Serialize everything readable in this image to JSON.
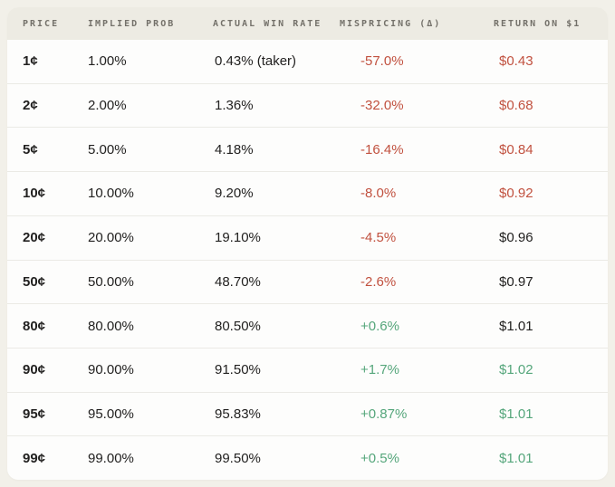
{
  "colors": {
    "page_bg": "#f2f0e9",
    "card_bg": "#fdfdfc",
    "header_bg": "#edebe3",
    "divider": "#ebeae5",
    "header_text": "#74716a",
    "text": "#222120",
    "negative": "#c1513f",
    "positive": "#55a67b"
  },
  "chart_data": {
    "type": "table",
    "columns": [
      "PRICE",
      "IMPLIED PROB",
      "ACTUAL WIN RATE",
      "MISPRICING (Δ)",
      "RETURN ON $1"
    ],
    "rows": [
      {
        "price": "1¢",
        "implied_prob": "1.00%",
        "actual_win_rate": "0.43% (taker)",
        "mispricing": "-57.0%",
        "mispricing_tone": "negative",
        "return_on_1": "$0.43",
        "return_tone": "negative"
      },
      {
        "price": "2¢",
        "implied_prob": "2.00%",
        "actual_win_rate": "1.36%",
        "mispricing": "-32.0%",
        "mispricing_tone": "negative",
        "return_on_1": "$0.68",
        "return_tone": "negative"
      },
      {
        "price": "5¢",
        "implied_prob": "5.00%",
        "actual_win_rate": "4.18%",
        "mispricing": "-16.4%",
        "mispricing_tone": "negative",
        "return_on_1": "$0.84",
        "return_tone": "negative"
      },
      {
        "price": "10¢",
        "implied_prob": "10.00%",
        "actual_win_rate": "9.20%",
        "mispricing": "-8.0%",
        "mispricing_tone": "negative",
        "return_on_1": "$0.92",
        "return_tone": "negative"
      },
      {
        "price": "20¢",
        "implied_prob": "20.00%",
        "actual_win_rate": "19.10%",
        "mispricing": "-4.5%",
        "mispricing_tone": "negative",
        "return_on_1": "$0.96",
        "return_tone": "neutral"
      },
      {
        "price": "50¢",
        "implied_prob": "50.00%",
        "actual_win_rate": "48.70%",
        "mispricing": "-2.6%",
        "mispricing_tone": "negative",
        "return_on_1": "$0.97",
        "return_tone": "neutral"
      },
      {
        "price": "80¢",
        "implied_prob": "80.00%",
        "actual_win_rate": "80.50%",
        "mispricing": "+0.6%",
        "mispricing_tone": "positive",
        "return_on_1": "$1.01",
        "return_tone": "neutral"
      },
      {
        "price": "90¢",
        "implied_prob": "90.00%",
        "actual_win_rate": "91.50%",
        "mispricing": "+1.7%",
        "mispricing_tone": "positive",
        "return_on_1": "$1.02",
        "return_tone": "positive"
      },
      {
        "price": "95¢",
        "implied_prob": "95.00%",
        "actual_win_rate": "95.83%",
        "mispricing": "+0.87%",
        "mispricing_tone": "positive",
        "return_on_1": "$1.01",
        "return_tone": "positive"
      },
      {
        "price": "99¢",
        "implied_prob": "99.00%",
        "actual_win_rate": "99.50%",
        "mispricing": "+0.5%",
        "mispricing_tone": "positive",
        "return_on_1": "$1.01",
        "return_tone": "positive"
      }
    ]
  }
}
